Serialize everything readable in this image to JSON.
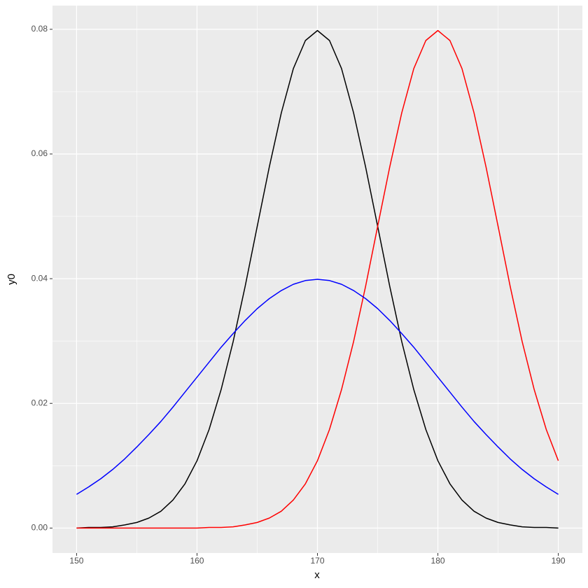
{
  "chart_data": {
    "type": "line",
    "x_label": "x",
    "y_label": "y0",
    "x": [
      150,
      151,
      152,
      153,
      154,
      155,
      156,
      157,
      158,
      159,
      160,
      161,
      162,
      163,
      164,
      165,
      166,
      167,
      168,
      169,
      170,
      171,
      172,
      173,
      174,
      175,
      176,
      177,
      178,
      179,
      180,
      181,
      182,
      183,
      184,
      185,
      186,
      187,
      188,
      189,
      190
    ],
    "series": [
      {
        "color": "#000000",
        "values": [
          0.0,
          0.0001,
          0.0001,
          0.0002,
          0.0005,
          0.0009,
          0.0016,
          0.0027,
          0.0045,
          0.0071,
          0.0108,
          0.0158,
          0.0222,
          0.0299,
          0.0388,
          0.0484,
          0.0579,
          0.0666,
          0.0737,
          0.0782,
          0.0798,
          0.0782,
          0.0737,
          0.0666,
          0.0579,
          0.0484,
          0.0388,
          0.0299,
          0.0222,
          0.0158,
          0.0108,
          0.0071,
          0.0045,
          0.0027,
          0.0016,
          0.0009,
          0.0005,
          0.0002,
          0.0001,
          0.0001,
          0.0
        ]
      },
      {
        "color": "#ff0000",
        "values": [
          0.0,
          0.0,
          0.0,
          0.0,
          0.0,
          0.0,
          0.0,
          0.0,
          0.0,
          0.0,
          0.0,
          0.0001,
          0.0001,
          0.0002,
          0.0005,
          0.0009,
          0.0016,
          0.0027,
          0.0045,
          0.0071,
          0.0108,
          0.0158,
          0.0222,
          0.0299,
          0.0388,
          0.0484,
          0.0579,
          0.0666,
          0.0737,
          0.0782,
          0.0798,
          0.0782,
          0.0737,
          0.0666,
          0.0579,
          0.0484,
          0.0388,
          0.0299,
          0.0222,
          0.0158,
          0.0108
        ]
      },
      {
        "color": "#0000ff",
        "values": [
          0.0054,
          0.0066,
          0.0079,
          0.0094,
          0.0111,
          0.013,
          0.015,
          0.0171,
          0.0194,
          0.0218,
          0.0242,
          0.0266,
          0.029,
          0.0312,
          0.0333,
          0.0352,
          0.0368,
          0.0381,
          0.0391,
          0.0397,
          0.0399,
          0.0397,
          0.0391,
          0.0381,
          0.0368,
          0.0352,
          0.0333,
          0.0312,
          0.029,
          0.0266,
          0.0242,
          0.0218,
          0.0194,
          0.0171,
          0.015,
          0.013,
          0.0111,
          0.0094,
          0.0079,
          0.0066,
          0.0054
        ]
      }
    ],
    "xlim": [
      148,
      192
    ],
    "ylim": [
      -0.004,
      0.0838
    ],
    "xticks": [
      150,
      160,
      170,
      180,
      190
    ],
    "yticks": [
      {
        "value": 0,
        "label": "0.00"
      },
      {
        "value": 0.02,
        "label": "0.02"
      },
      {
        "value": 0.04,
        "label": "0.04"
      },
      {
        "value": 0.06,
        "label": "0.06"
      },
      {
        "value": 0.08,
        "label": "0.08"
      }
    ],
    "x_minor_ticks": [
      155,
      165,
      175,
      185
    ],
    "y_minor_ticks": [
      0.01,
      0.03,
      0.05,
      0.07
    ],
    "grid": true
  }
}
